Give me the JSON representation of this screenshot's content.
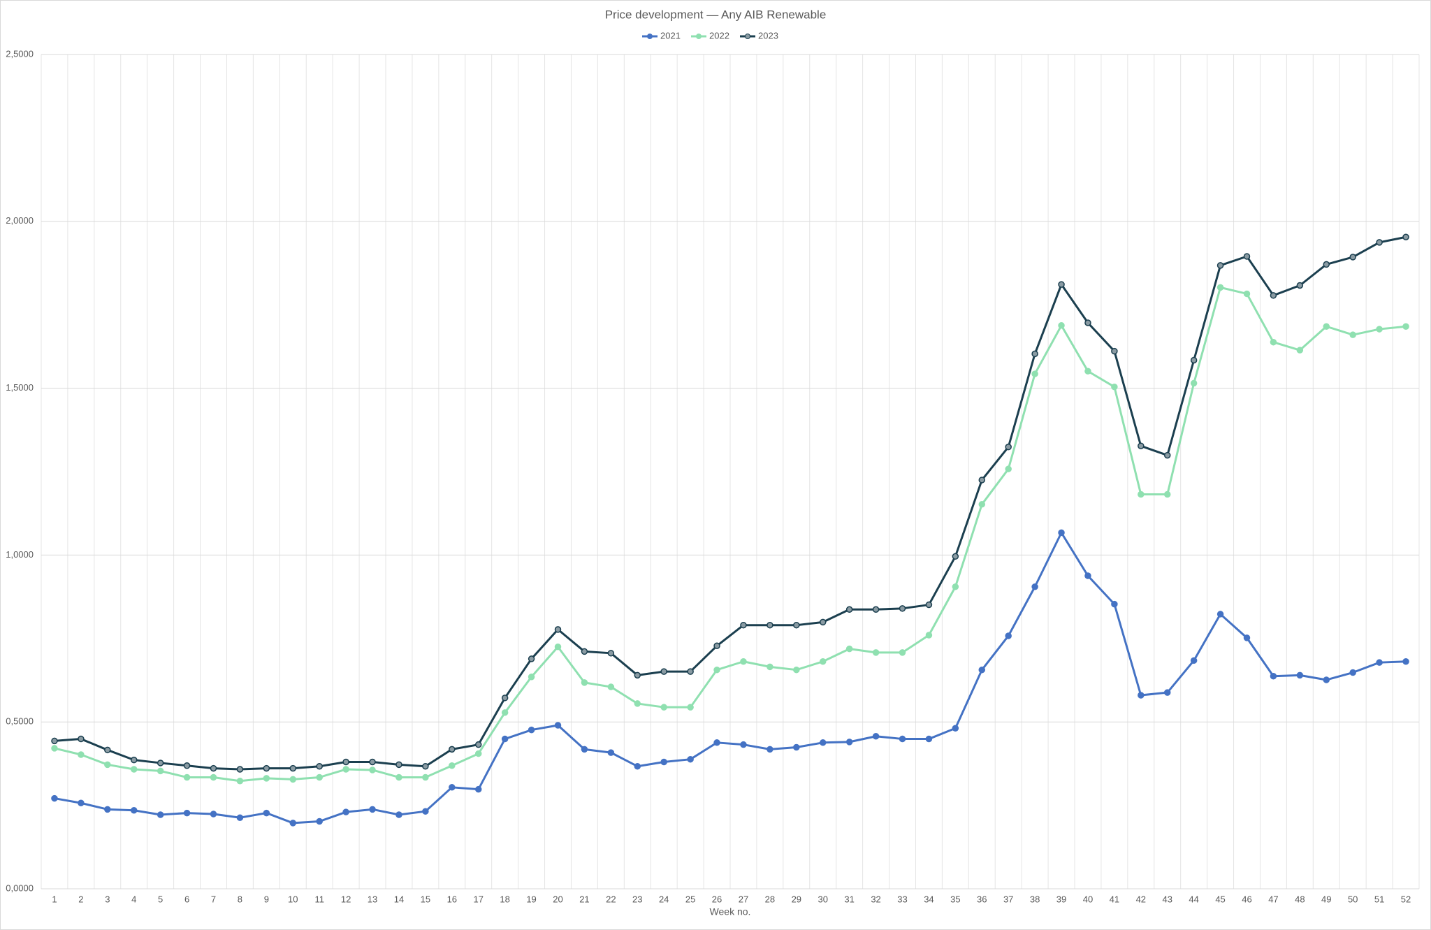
{
  "chart_data": {
    "type": "line",
    "title": "Price development — Any AIB Renewable",
    "x_label": "Week no.",
    "categories": [
      1,
      2,
      3,
      4,
      5,
      6,
      7,
      8,
      9,
      10,
      11,
      12,
      13,
      14,
      15,
      16,
      17,
      18,
      19,
      20,
      21,
      22,
      23,
      24,
      25,
      26,
      27,
      28,
      29,
      30,
      31,
      32,
      33,
      34,
      35,
      36,
      37,
      38,
      39,
      40,
      41,
      42,
      43,
      44,
      45,
      46,
      47,
      48,
      49,
      50,
      51,
      52
    ],
    "series": [
      {
        "name": "2021",
        "color": "#4472c4",
        "values": [
          0.271,
          0.257,
          0.238,
          0.235,
          0.222,
          0.227,
          0.224,
          0.213,
          0.227,
          0.197,
          0.202,
          0.23,
          0.238,
          0.222,
          0.232,
          0.304,
          0.298,
          0.449,
          0.476,
          0.49,
          0.418,
          0.408,
          0.367,
          0.38,
          0.388,
          0.438,
          0.432,
          0.418,
          0.424,
          0.438,
          0.44,
          0.457,
          0.449,
          0.449,
          0.481,
          0.656,
          0.758,
          0.905,
          1.067,
          0.938,
          0.853,
          0.58,
          0.588,
          0.684,
          0.823,
          0.752,
          0.637,
          0.64,
          0.626,
          0.648,
          0.678,
          0.681
        ]
      },
      {
        "name": "2022",
        "color": "#8fe0b0",
        "values": [
          0.421,
          0.402,
          0.372,
          0.358,
          0.353,
          0.334,
          0.334,
          0.323,
          0.331,
          0.328,
          0.334,
          0.358,
          0.356,
          0.334,
          0.334,
          0.369,
          0.405,
          0.528,
          0.635,
          0.725,
          0.618,
          0.605,
          0.555,
          0.544,
          0.544,
          0.656,
          0.681,
          0.665,
          0.656,
          0.681,
          0.719,
          0.708,
          0.708,
          0.76,
          0.905,
          1.152,
          1.258,
          1.543,
          1.688,
          1.551,
          1.504,
          1.182,
          1.182,
          1.515,
          1.802,
          1.783,
          1.638,
          1.614,
          1.685,
          1.66,
          1.677,
          1.685
        ]
      },
      {
        "name": "2023",
        "color": "#1b3f4f",
        "values": [
          0.443,
          0.449,
          0.416,
          0.386,
          0.377,
          0.369,
          0.361,
          0.358,
          0.361,
          0.361,
          0.367,
          0.38,
          0.38,
          0.372,
          0.367,
          0.418,
          0.432,
          0.572,
          0.689,
          0.777,
          0.711,
          0.706,
          0.64,
          0.651,
          0.651,
          0.728,
          0.79,
          0.79,
          0.79,
          0.799,
          0.837,
          0.837,
          0.84,
          0.851,
          0.996,
          1.225,
          1.324,
          1.603,
          1.811,
          1.696,
          1.611,
          1.327,
          1.299,
          1.584,
          1.868,
          1.895,
          1.778,
          1.808,
          1.871,
          1.893,
          1.937,
          1.953
        ]
      }
    ],
    "ylim": [
      0,
      2.5
    ],
    "yticks": [
      {
        "value": 0,
        "label": "0,0000"
      },
      {
        "value": 0.5,
        "label": "0,5000"
      },
      {
        "value": 1,
        "label": "1,0000"
      },
      {
        "value": 1.5,
        "label": "1,5000"
      },
      {
        "value": 2,
        "label": "2,0000"
      },
      {
        "value": 2.5,
        "label": "2,5000"
      }
    ],
    "grid": true,
    "legend": "top"
  }
}
